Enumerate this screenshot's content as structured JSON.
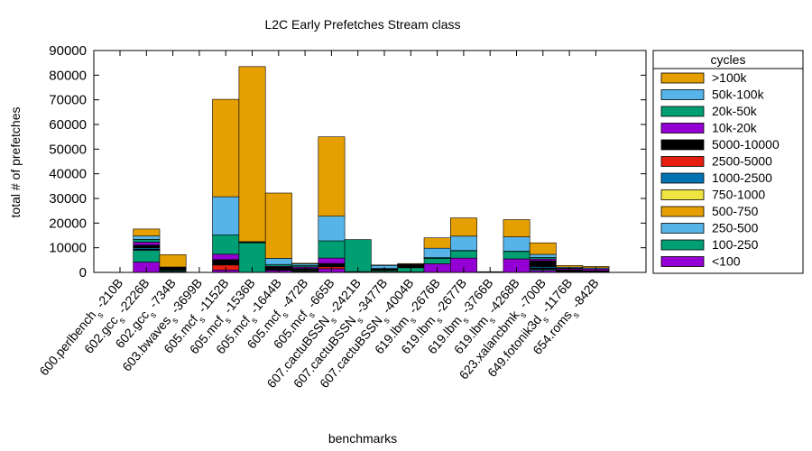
{
  "chart_data": {
    "type": "bar",
    "stacked": true,
    "title": "L2C Early Prefetches Stream class",
    "xlabel": "benchmarks",
    "ylabel": "total # of prefetches",
    "ylim": [
      0,
      90000
    ],
    "yticks": [
      "0",
      "10000",
      "20000",
      "30000",
      "40000",
      "50000",
      "60000",
      "70000",
      "80000",
      "90000"
    ],
    "grid": false,
    "legend_position": "right",
    "legend_title": "cycles",
    "categories": [
      {
        "base": "600.perlbench",
        "sub": "s",
        "suffix": " -210B"
      },
      {
        "base": "602.gcc",
        "sub": "s",
        "suffix": " -2226B"
      },
      {
        "base": "602.gcc",
        "sub": "s",
        "suffix": " -734B"
      },
      {
        "base": "603.bwaves",
        "sub": "s",
        "suffix": " -3699B"
      },
      {
        "base": "605.mcf",
        "sub": "s",
        "suffix": " -1152B"
      },
      {
        "base": "605.mcf",
        "sub": "s",
        "suffix": " -1536B"
      },
      {
        "base": "605.mcf",
        "sub": "s",
        "suffix": " -1644B"
      },
      {
        "base": "605.mcf",
        "sub": "s",
        "suffix": " -472B"
      },
      {
        "base": "605.mcf",
        "sub": "s",
        "suffix": " -665B"
      },
      {
        "base": "607.cactuBSSN",
        "sub": "s",
        "suffix": " -2421B"
      },
      {
        "base": "607.cactuBSSN",
        "sub": "s",
        "suffix": " -3477B"
      },
      {
        "base": "607.cactuBSSN",
        "sub": "s",
        "suffix": " -4004B"
      },
      {
        "base": "619.lbm",
        "sub": "s",
        "suffix": " -2676B"
      },
      {
        "base": "619.lbm",
        "sub": "s",
        "suffix": " -2677B"
      },
      {
        "base": "619.lbm",
        "sub": "s",
        "suffix": " -3766B"
      },
      {
        "base": "619.lbm",
        "sub": "s",
        "suffix": " -4268B"
      },
      {
        "base": "623.xalancbmk",
        "sub": "s",
        "suffix": " -700B"
      },
      {
        "base": "649.fotonik3d",
        "sub": "s",
        "suffix": " -1176B"
      },
      {
        "base": "654.roms",
        "sub": "s",
        "suffix": " -842B"
      }
    ],
    "series": [
      {
        "name": "<100",
        "color": "#9400d3",
        "values": [
          0,
          4200,
          300,
          0,
          1000,
          0,
          800,
          300,
          1500,
          300,
          200,
          200,
          3500,
          5800,
          0,
          5500,
          800,
          300,
          200
        ]
      },
      {
        "name": "100-250",
        "color": "#009e73",
        "values": [
          0,
          4700,
          400,
          0,
          0,
          12000,
          0,
          0,
          0,
          13000,
          500,
          1700,
          2200,
          3000,
          0,
          3000,
          400,
          0,
          0
        ]
      },
      {
        "name": "250-500",
        "color": "#56b4e9",
        "values": [
          0,
          300,
          100,
          0,
          0,
          0,
          200,
          300,
          0,
          0,
          200,
          200,
          100,
          0,
          0,
          0,
          300,
          0,
          0
        ]
      },
      {
        "name": "500-750",
        "color": "#e69f00",
        "values": [
          0,
          200,
          100,
          0,
          0,
          0,
          200,
          300,
          0,
          0,
          100,
          200,
          100,
          0,
          0,
          0,
          200,
          0,
          0
        ]
      },
      {
        "name": "750-1000",
        "color": "#f0e442",
        "values": [
          0,
          100,
          0,
          0,
          0,
          0,
          100,
          100,
          0,
          0,
          0,
          100,
          0,
          0,
          0,
          0,
          100,
          0,
          0
        ]
      },
      {
        "name": "1000-2500",
        "color": "#0072b2",
        "values": [
          0,
          500,
          200,
          0,
          0,
          0,
          300,
          300,
          0,
          0,
          100,
          200,
          0,
          0,
          0,
          0,
          600,
          100,
          0
        ]
      },
      {
        "name": "2500-5000",
        "color": "#e51e10",
        "values": [
          0,
          200,
          100,
          0,
          2000,
          0,
          100,
          100,
          800,
          0,
          0,
          0,
          0,
          0,
          0,
          0,
          100,
          0,
          0
        ]
      },
      {
        "name": "5000-10000",
        "color": "#000000",
        "values": [
          0,
          900,
          600,
          0,
          2200,
          300,
          500,
          200,
          1300,
          0,
          100,
          400,
          100,
          100,
          300,
          100,
          2200,
          600,
          500
        ]
      },
      {
        "name": "10k-20k",
        "color": "#9400d3",
        "values": [
          0,
          1200,
          200,
          0,
          2200,
          0,
          300,
          600,
          2200,
          0,
          200,
          300,
          0,
          0,
          0,
          0,
          700,
          500,
          700
        ]
      },
      {
        "name": "20k-50k",
        "color": "#009e73",
        "values": [
          0,
          1100,
          0,
          0,
          7800,
          0,
          700,
          600,
          7000,
          0,
          200,
          0,
          0,
          0,
          0,
          0,
          700,
          200,
          0
        ]
      },
      {
        "name": "50k-100k",
        "color": "#56b4e9",
        "values": [
          0,
          1400,
          200,
          0,
          15500,
          200,
          2500,
          600,
          10000,
          0,
          1200,
          0,
          3800,
          5800,
          0,
          5800,
          1200,
          400,
          400
        ]
      },
      {
        "name": ">100k",
        "color": "#e69f00",
        "values": [
          0,
          2800,
          5000,
          0,
          39500,
          71000,
          26500,
          300,
          32200,
          0,
          200,
          300,
          4200,
          7400,
          0,
          7000,
          4700,
          700,
          600
        ]
      }
    ]
  }
}
